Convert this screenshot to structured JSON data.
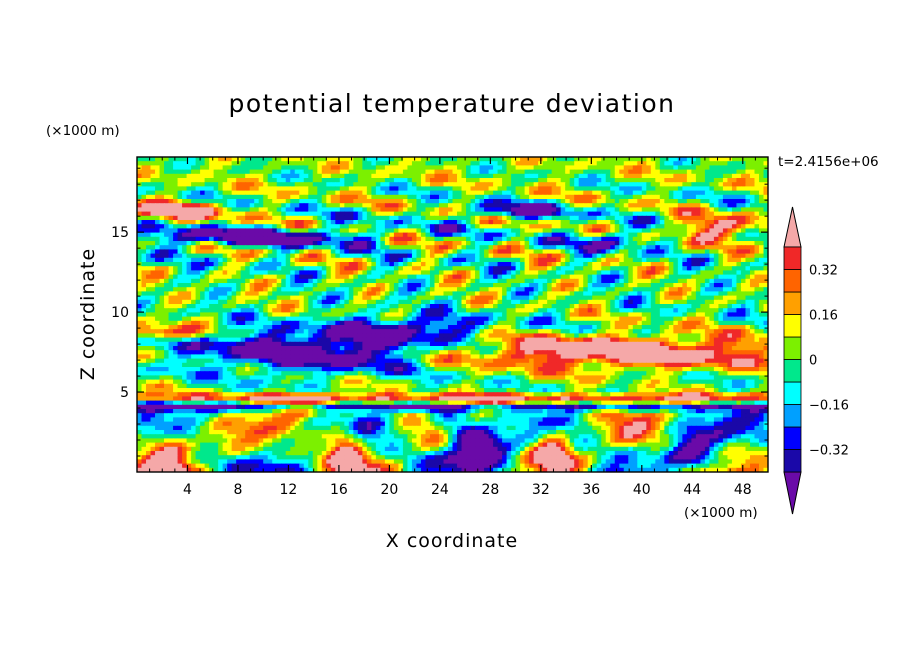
{
  "chart_data": {
    "type": "heatmap",
    "title": "potential temperature deviation",
    "xlabel": "X coordinate",
    "ylabel": "Z coordinate",
    "x_unit": "(×1000 m)",
    "y_unit": "(×1000 m)",
    "time_label": "t=2.4156e+06",
    "xlim": [
      0,
      50
    ],
    "ylim": [
      0,
      19.7
    ],
    "x_ticks": [
      4,
      8,
      12,
      16,
      20,
      24,
      28,
      32,
      36,
      40,
      44,
      48
    ],
    "y_ticks": [
      5,
      10,
      15
    ],
    "x_tick_labels": [
      "4",
      "8",
      "12",
      "16",
      "20",
      "24",
      "28",
      "32",
      "36",
      "40",
      "44",
      "48"
    ],
    "y_tick_labels": [
      "5",
      "10",
      "15"
    ],
    "colorbar": {
      "levels": [
        -0.4,
        -0.32,
        -0.24,
        -0.16,
        -0.08,
        0,
        0.08,
        0.16,
        0.24,
        0.32,
        0.4
      ],
      "labeled_ticks": [
        0.32,
        0.16,
        0,
        -0.16,
        -0.32
      ],
      "labeled_tick_text": [
        "0.32",
        "0.16",
        "0",
        "−0.16",
        "−0.32"
      ],
      "band_colors": [
        "#1a08a8",
        "#0000ff",
        "#00a0ff",
        "#00ffff",
        "#00e88c",
        "#7cf000",
        "#ffff00",
        "#ffa000",
        "#ff6400",
        "#f02828"
      ],
      "under_color": "#6a0aa8",
      "over_color": "#f5a8a8",
      "extend": "both"
    },
    "regions": [
      {
        "x": [
          0,
          50
        ],
        "z": [
          17.5,
          19.7
        ],
        "approx_value": 0.04
      },
      {
        "x": [
          0,
          50
        ],
        "z": [
          10,
          17.5
        ],
        "approx_value": 0.0,
        "note": "mixed"
      },
      {
        "x": [
          0,
          50
        ],
        "z": [
          5.5,
          10
        ],
        "approx_value": -0.3,
        "note": "mixed"
      },
      {
        "x": [
          22,
          50
        ],
        "z": [
          6.5,
          9
        ],
        "approx_value": 0.42
      },
      {
        "x": [
          0,
          50
        ],
        "z": [
          4,
          4.6
        ],
        "approx_value": -0.42
      },
      {
        "x": [
          0,
          50
        ],
        "z": [
          0,
          3.5
        ],
        "approx_value": 0.0,
        "note": "mixed"
      }
    ]
  }
}
